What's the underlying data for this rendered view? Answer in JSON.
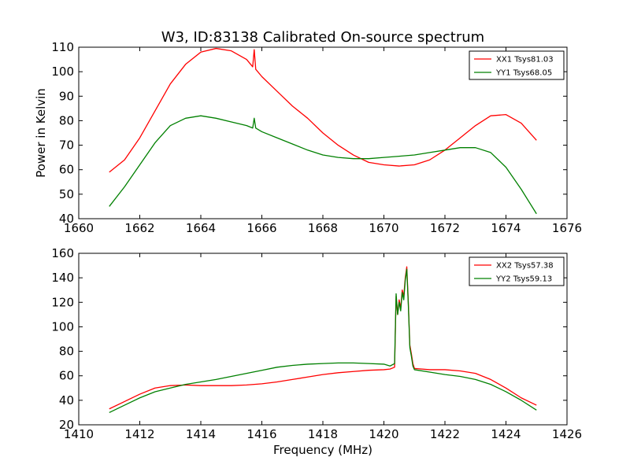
{
  "figure": {
    "title": "W3, ID:83138 Calibrated On-source spectrum",
    "ylabel": "Power in Kelvin",
    "xlabel": "Frequency (MHz)"
  },
  "colors": {
    "red": "#ff0000",
    "green": "#008000",
    "axes": "#000000"
  },
  "chart_data": [
    {
      "type": "line",
      "xlim": [
        1660,
        1676
      ],
      "ylim": [
        40,
        110
      ],
      "xticks": [
        "1660",
        "1662",
        "1664",
        "1666",
        "1668",
        "1670",
        "1672",
        "1674",
        "1676"
      ],
      "yticks": [
        "40",
        "50",
        "60",
        "70",
        "80",
        "90",
        "100",
        "110"
      ],
      "grid": false,
      "legend_position": "top-right",
      "series": [
        {
          "name": "XX1 Tsys81.03",
          "color": "#ff0000",
          "x": [
            1661,
            1661.5,
            1662,
            1662.5,
            1663,
            1663.5,
            1664,
            1664.5,
            1665,
            1665.5,
            1665.7,
            1665.75,
            1665.8,
            1666,
            1666.5,
            1667,
            1667.5,
            1668,
            1668.5,
            1669,
            1669.5,
            1670,
            1670.5,
            1671,
            1671.5,
            1672,
            1672.5,
            1673,
            1673.5,
            1674,
            1674.5,
            1675
          ],
          "y": [
            59,
            64,
            73,
            84,
            95,
            103,
            108,
            109.5,
            108.5,
            105,
            102,
            109,
            101,
            98,
            92,
            86,
            81,
            75,
            70,
            66,
            63,
            62,
            61.5,
            62,
            64,
            68,
            73,
            78,
            82,
            82.5,
            79,
            72
          ]
        },
        {
          "name": "YY1 Tsys68.05",
          "color": "#008000",
          "x": [
            1661,
            1661.5,
            1662,
            1662.5,
            1663,
            1663.5,
            1664,
            1664.5,
            1665,
            1665.5,
            1665.7,
            1665.75,
            1665.8,
            1666,
            1666.5,
            1667,
            1667.5,
            1668,
            1668.5,
            1669,
            1669.5,
            1670,
            1670.5,
            1671,
            1671.5,
            1672,
            1672.5,
            1673,
            1673.5,
            1674,
            1674.5,
            1675
          ],
          "y": [
            45,
            53,
            62,
            71,
            78,
            81,
            82,
            81,
            79.5,
            78,
            77,
            81,
            77,
            75.5,
            73,
            70.5,
            68,
            66,
            65,
            64.5,
            64.5,
            65,
            65.5,
            66,
            67,
            68,
            69,
            69,
            67,
            61,
            52,
            42
          ]
        }
      ]
    },
    {
      "type": "line",
      "xlim": [
        1410,
        1426
      ],
      "ylim": [
        20,
        160
      ],
      "xticks": [
        "1410",
        "1412",
        "1414",
        "1416",
        "1418",
        "1420",
        "1422",
        "1424",
        "1426"
      ],
      "yticks": [
        "20",
        "40",
        "60",
        "80",
        "100",
        "120",
        "140",
        "160"
      ],
      "grid": false,
      "legend_position": "top-right",
      "series": [
        {
          "name": "XX2 Tsys57.38",
          "color": "#ff0000",
          "x": [
            1411,
            1411.5,
            1412,
            1412.5,
            1413,
            1413.5,
            1414,
            1414.5,
            1415,
            1415.5,
            1416,
            1416.5,
            1417,
            1417.5,
            1418,
            1418.5,
            1419,
            1419.5,
            1420,
            1420.2,
            1420.35,
            1420.4,
            1420.45,
            1420.5,
            1420.55,
            1420.6,
            1420.65,
            1420.7,
            1420.75,
            1420.8,
            1420.85,
            1420.9,
            1420.95,
            1421,
            1421.5,
            1422,
            1422.5,
            1423,
            1423.5,
            1424,
            1424.5,
            1425
          ],
          "y": [
            33,
            39,
            45,
            50,
            52,
            52.5,
            52,
            52,
            52,
            52.5,
            53.5,
            55,
            57,
            59,
            61,
            62.5,
            63.5,
            64.5,
            65,
            65.5,
            67,
            125,
            110,
            122,
            115,
            130,
            125,
            140,
            149,
            120,
            85,
            78,
            70,
            66,
            65,
            65,
            64,
            62,
            57,
            50,
            42,
            36
          ]
        },
        {
          "name": "YY2 Tsys59.13",
          "color": "#008000",
          "x": [
            1411,
            1411.5,
            1412,
            1412.5,
            1413,
            1413.5,
            1414,
            1414.5,
            1415,
            1415.5,
            1416,
            1416.5,
            1417,
            1417.5,
            1418,
            1418.5,
            1419,
            1419.5,
            1420,
            1420.2,
            1420.35,
            1420.4,
            1420.45,
            1420.5,
            1420.55,
            1420.6,
            1420.65,
            1420.7,
            1420.75,
            1420.8,
            1420.85,
            1420.9,
            1420.95,
            1421,
            1421.5,
            1422,
            1422.5,
            1423,
            1423.5,
            1424,
            1424.5,
            1425
          ],
          "y": [
            30,
            36,
            42,
            47,
            50,
            53,
            55,
            57,
            59.5,
            62,
            64.5,
            67,
            68.5,
            69.5,
            70,
            70.5,
            70.5,
            70,
            69.5,
            68,
            70,
            127,
            110,
            120,
            113,
            128,
            122,
            138,
            147,
            118,
            83,
            76,
            68,
            65,
            63,
            61,
            59.5,
            57,
            53,
            47,
            40,
            32
          ]
        }
      ]
    }
  ]
}
